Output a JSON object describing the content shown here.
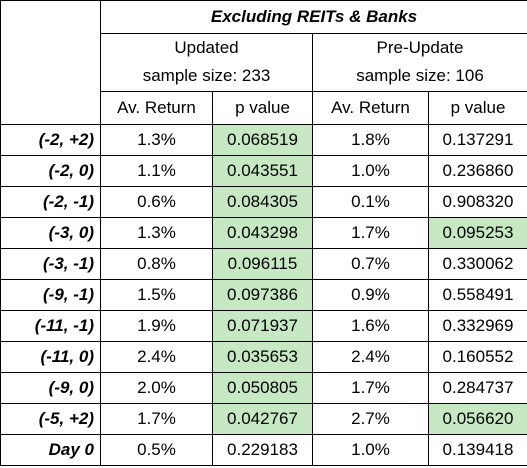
{
  "table": {
    "title": "Excluding REITs & Banks",
    "groups": [
      {
        "name": "Updated",
        "sample": "sample size: 233"
      },
      {
        "name": "Pre-Update",
        "sample": "sample size: 106"
      }
    ],
    "columns": [
      "Av. Return",
      "p value",
      "Av. Return",
      "p value"
    ],
    "rows": [
      {
        "label": "(-2, +2)",
        "cells": [
          "1.3%",
          "0.068519",
          "1.8%",
          "0.137291"
        ],
        "highlight": [
          false,
          true,
          false,
          false
        ]
      },
      {
        "label": "(-2, 0)",
        "cells": [
          "1.1%",
          "0.043551",
          "1.0%",
          "0.236860"
        ],
        "highlight": [
          false,
          true,
          false,
          false
        ]
      },
      {
        "label": "(-2, -1)",
        "cells": [
          "0.6%",
          "0.084305",
          "0.1%",
          "0.908320"
        ],
        "highlight": [
          false,
          true,
          false,
          false
        ]
      },
      {
        "label": "(-3, 0)",
        "cells": [
          "1.3%",
          "0.043298",
          "1.7%",
          "0.095253"
        ],
        "highlight": [
          false,
          true,
          false,
          true
        ]
      },
      {
        "label": "(-3, -1)",
        "cells": [
          "0.8%",
          "0.096115",
          "0.7%",
          "0.330062"
        ],
        "highlight": [
          false,
          true,
          false,
          false
        ]
      },
      {
        "label": "(-9, -1)",
        "cells": [
          "1.5%",
          "0.097386",
          "0.9%",
          "0.558491"
        ],
        "highlight": [
          false,
          true,
          false,
          false
        ]
      },
      {
        "label": "(-11, -1)",
        "cells": [
          "1.9%",
          "0.071937",
          "1.6%",
          "0.332969"
        ],
        "highlight": [
          false,
          true,
          false,
          false
        ]
      },
      {
        "label": "(-11, 0)",
        "cells": [
          "2.4%",
          "0.035653",
          "2.4%",
          "0.160552"
        ],
        "highlight": [
          false,
          true,
          false,
          false
        ]
      },
      {
        "label": "(-9, 0)",
        "cells": [
          "2.0%",
          "0.050805",
          "1.7%",
          "0.284737"
        ],
        "highlight": [
          false,
          true,
          false,
          false
        ]
      },
      {
        "label": "(-5, +2)",
        "cells": [
          "1.7%",
          "0.042767",
          "2.7%",
          "0.056620"
        ],
        "highlight": [
          false,
          true,
          false,
          true
        ]
      },
      {
        "label": "Day 0",
        "cells": [
          "0.5%",
          "0.229183",
          "1.0%",
          "0.139418"
        ],
        "highlight": [
          false,
          false,
          false,
          false
        ]
      }
    ]
  }
}
